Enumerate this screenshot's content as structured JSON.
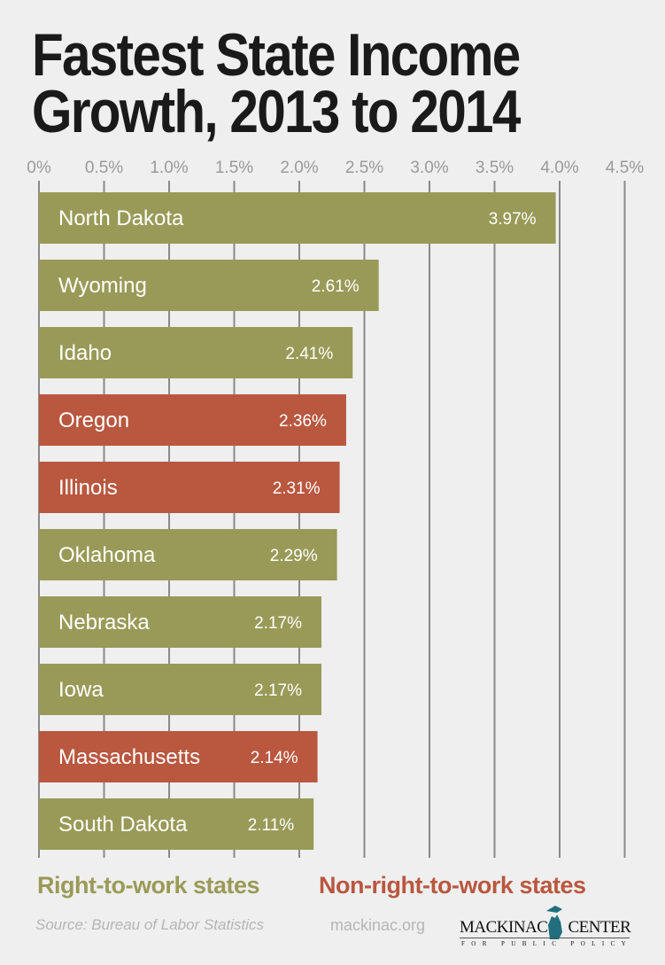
{
  "chart_data": {
    "type": "bar",
    "orientation": "horizontal",
    "title": "Fastest State Income Growth, 2013 to 2014",
    "title_lines": [
      "Fastest State Income",
      "Growth, 2013 to 2014"
    ],
    "xlim": [
      0,
      4.5
    ],
    "ticks": [
      "0%",
      "0.5%",
      "1.0%",
      "1.5%",
      "2.0%",
      "2.5%",
      "3.0%",
      "3.5%",
      "4.0%",
      "4.5%"
    ],
    "tick_values": [
      0,
      0.5,
      1.0,
      1.5,
      2.0,
      2.5,
      3.0,
      3.5,
      4.0,
      4.5
    ],
    "grid": true,
    "categories": [
      "North Dakota",
      "Wyoming",
      "Idaho",
      "Oregon",
      "Illinois",
      "Oklahoma",
      "Nebraska",
      "Iowa",
      "Massachusetts",
      "South Dakota"
    ],
    "values": [
      3.97,
      2.61,
      2.41,
      2.36,
      2.31,
      2.29,
      2.17,
      2.17,
      2.14,
      2.11
    ],
    "value_labels": [
      "3.97%",
      "2.61%",
      "2.41%",
      "2.36%",
      "2.31%",
      "2.29%",
      "2.17%",
      "2.17%",
      "2.14%",
      "2.11%"
    ],
    "groups": [
      "rtw",
      "rtw",
      "rtw",
      "nonrtw",
      "nonrtw",
      "rtw",
      "rtw",
      "rtw",
      "nonrtw",
      "rtw"
    ],
    "legend": {
      "rtw": "Right-to-work states",
      "nonrtw": "Non-right-to-work states",
      "placement": "bottom"
    },
    "colors": {
      "rtw": "#9a9a58",
      "nonrtw": "#b9573f",
      "grid": "#8a8a8a",
      "tick": "#9a9a9a"
    }
  },
  "footer": {
    "source": "Source: Bureau of Labor Statistics",
    "site": "mackinac.org",
    "logo_name_left": "MACKINAC",
    "logo_name_right": "CENTER",
    "logo_sub": "FOR PUBLIC POLICY"
  }
}
